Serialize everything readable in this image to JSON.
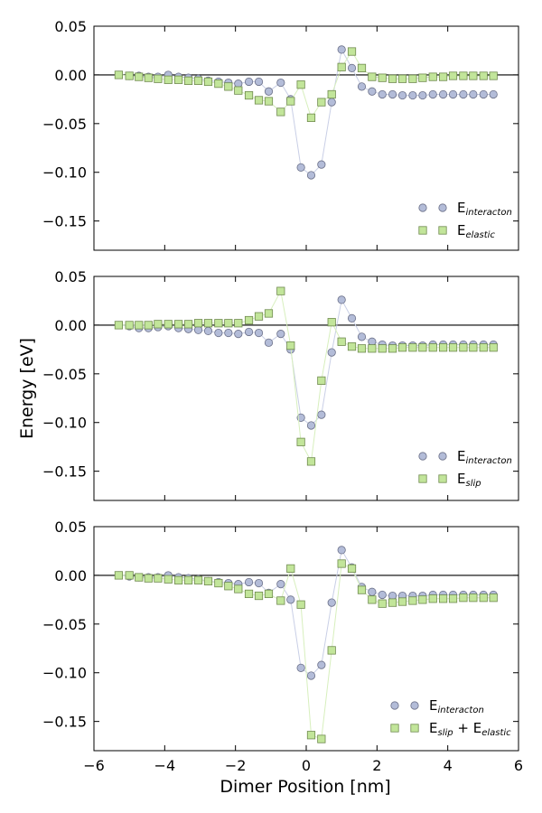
{
  "figure": {
    "ylabel": "Energy [eV]",
    "xlabel": "Dimer Position [nm]"
  },
  "colors": {
    "interaction_fill": "#b3bcd8",
    "interaction_edge": "#6b7088",
    "interaction_line": "#c9cfe6",
    "elastic_fill": "#c2e59a",
    "elastic_edge": "#6f8a4e",
    "elastic_line": "#d7efbd"
  },
  "chart_data": [
    {
      "type": "scatter",
      "title": "",
      "xlabel": "",
      "ylabel": "Energy [eV]",
      "xlim": [
        -6,
        6
      ],
      "ylim": [
        -0.18,
        0.05
      ],
      "xticks": [
        "−6",
        "−4",
        "−2",
        "0",
        "2",
        "4",
        "6"
      ],
      "yticks": [
        "0.05",
        "0.00",
        "−0.05",
        "−0.10",
        "−0.15"
      ],
      "ytick_values": [
        0.05,
        0.0,
        -0.05,
        -0.1,
        -0.15
      ],
      "legend_position": "bottom-right",
      "x": [
        -5.3,
        -5.0,
        -4.73,
        -4.46,
        -4.19,
        -3.9,
        -3.61,
        -3.33,
        -3.05,
        -2.77,
        -2.48,
        -2.2,
        -1.92,
        -1.62,
        -1.34,
        -1.06,
        -0.72,
        -0.44,
        -0.15,
        0.14,
        0.43,
        0.72,
        1.0,
        1.29,
        1.57,
        1.86,
        2.15,
        2.44,
        2.72,
        3.01,
        3.29,
        3.58,
        3.87,
        4.15,
        4.44,
        4.72,
        5.01,
        5.29
      ],
      "series": [
        {
          "name": "interaction",
          "label_main": "E",
          "label_sub": "interacton",
          "marker": "circle",
          "values": [
            0,
            -0.001,
            -0.001,
            -0.002,
            -0.002,
            0,
            -0.002,
            -0.003,
            -0.004,
            -0.006,
            -0.007,
            -0.008,
            -0.009,
            -0.007,
            -0.007,
            -0.017,
            -0.008,
            -0.025,
            -0.095,
            -0.103,
            -0.092,
            -0.028,
            0.026,
            0.007,
            -0.012,
            -0.017,
            -0.02,
            -0.02,
            -0.021,
            -0.021,
            -0.021,
            -0.02,
            -0.02,
            -0.02,
            -0.02,
            -0.02,
            -0.02,
            -0.02
          ]
        },
        {
          "name": "elastic",
          "label_main": "E",
          "label_sub": "elastic",
          "marker": "square",
          "values": [
            0,
            -0.001,
            -0.002,
            -0.003,
            -0.004,
            -0.005,
            -0.005,
            -0.006,
            -0.006,
            -0.007,
            -0.009,
            -0.012,
            -0.016,
            -0.021,
            -0.026,
            -0.027,
            -0.038,
            -0.027,
            -0.01,
            -0.044,
            -0.028,
            -0.02,
            0.008,
            0.024,
            0.007,
            -0.002,
            -0.003,
            -0.004,
            -0.004,
            -0.004,
            -0.003,
            -0.002,
            -0.002,
            -0.001,
            -0.001,
            -0.001,
            -0.001,
            -0.001
          ]
        }
      ]
    },
    {
      "type": "scatter",
      "title": "",
      "xlabel": "",
      "ylabel": "Energy [eV]",
      "xlim": [
        -6,
        6
      ],
      "ylim": [
        -0.18,
        0.05
      ],
      "xticks": [
        "−6",
        "−4",
        "−2",
        "0",
        "2",
        "4",
        "6"
      ],
      "yticks": [
        "0.05",
        "0.00",
        "−0.05",
        "−0.10",
        "−0.15"
      ],
      "ytick_values": [
        0.05,
        0.0,
        -0.05,
        -0.1,
        -0.15
      ],
      "legend_position": "bottom-right",
      "x": [
        -5.3,
        -5.0,
        -4.73,
        -4.46,
        -4.19,
        -3.9,
        -3.61,
        -3.33,
        -3.05,
        -2.77,
        -2.48,
        -2.2,
        -1.92,
        -1.62,
        -1.34,
        -1.06,
        -0.72,
        -0.44,
        -0.15,
        0.14,
        0.43,
        0.72,
        1.0,
        1.29,
        1.57,
        1.86,
        2.15,
        2.44,
        2.72,
        3.01,
        3.29,
        3.58,
        3.87,
        4.15,
        4.44,
        4.72,
        5.01,
        5.29
      ],
      "series": [
        {
          "name": "interaction",
          "label_main": "E",
          "label_sub": "interacton",
          "marker": "circle",
          "values": [
            0,
            -0.001,
            -0.003,
            -0.003,
            -0.002,
            -0.001,
            -0.003,
            -0.004,
            -0.005,
            -0.006,
            -0.008,
            -0.008,
            -0.009,
            -0.007,
            -0.008,
            -0.018,
            -0.009,
            -0.025,
            -0.095,
            -0.103,
            -0.092,
            -0.028,
            0.026,
            0.007,
            -0.012,
            -0.017,
            -0.02,
            -0.021,
            -0.021,
            -0.021,
            -0.021,
            -0.02,
            -0.02,
            -0.02,
            -0.02,
            -0.02,
            -0.02,
            -0.02
          ]
        },
        {
          "name": "slip",
          "label_main": "E",
          "label_sub": "slip",
          "marker": "square",
          "values": [
            0,
            0,
            0,
            0,
            0.001,
            0.001,
            0.001,
            0.001,
            0.002,
            0.002,
            0.002,
            0.002,
            0.002,
            0.005,
            0.009,
            0.012,
            0.035,
            -0.021,
            -0.12,
            -0.14,
            -0.057,
            0.003,
            -0.017,
            -0.022,
            -0.024,
            -0.024,
            -0.024,
            -0.024,
            -0.023,
            -0.023,
            -0.023,
            -0.023,
            -0.023,
            -0.023,
            -0.023,
            -0.023,
            -0.023,
            -0.023
          ]
        }
      ]
    },
    {
      "type": "scatter",
      "title": "",
      "xlabel": "Dimer Position [nm]",
      "ylabel": "Energy [eV]",
      "xlim": [
        -6,
        6
      ],
      "ylim": [
        -0.18,
        0.05
      ],
      "xticks": [
        "−6",
        "−4",
        "−2",
        "0",
        "2",
        "4",
        "6"
      ],
      "yticks": [
        "0.05",
        "0.00",
        "−0.05",
        "−0.10",
        "−0.15"
      ],
      "ytick_values": [
        0.05,
        0.0,
        -0.05,
        -0.1,
        -0.15
      ],
      "legend_position": "bottom-right",
      "x": [
        -5.3,
        -5.0,
        -4.73,
        -4.46,
        -4.19,
        -3.9,
        -3.61,
        -3.33,
        -3.05,
        -2.77,
        -2.48,
        -2.2,
        -1.92,
        -1.62,
        -1.34,
        -1.06,
        -0.72,
        -0.44,
        -0.15,
        0.14,
        0.43,
        0.72,
        1.0,
        1.29,
        1.57,
        1.86,
        2.15,
        2.44,
        2.72,
        3.01,
        3.29,
        3.58,
        3.87,
        4.15,
        4.44,
        4.72,
        5.01,
        5.29
      ],
      "series": [
        {
          "name": "interaction",
          "label_main": "E",
          "label_sub": "interacton",
          "marker": "circle",
          "values": [
            0,
            -0.001,
            -0.002,
            -0.002,
            -0.002,
            0,
            -0.002,
            -0.003,
            -0.004,
            -0.006,
            -0.007,
            -0.008,
            -0.009,
            -0.007,
            -0.008,
            -0.018,
            -0.009,
            -0.025,
            -0.095,
            -0.103,
            -0.092,
            -0.028,
            0.026,
            0.008,
            -0.012,
            -0.017,
            -0.02,
            -0.021,
            -0.021,
            -0.021,
            -0.021,
            -0.02,
            -0.02,
            -0.02,
            -0.02,
            -0.02,
            -0.02,
            -0.02
          ]
        },
        {
          "name": "slip_plus_elastic",
          "label_main": "E",
          "label_sub": "slip",
          "label_plus": " + E",
          "label_sub2": "elastic",
          "marker": "square",
          "values": [
            0,
            0,
            -0.002,
            -0.003,
            -0.003,
            -0.004,
            -0.005,
            -0.005,
            -0.005,
            -0.006,
            -0.008,
            -0.011,
            -0.014,
            -0.019,
            -0.021,
            -0.019,
            -0.026,
            0.007,
            -0.03,
            -0.164,
            -0.168,
            -0.077,
            0.012,
            0.007,
            -0.015,
            -0.025,
            -0.029,
            -0.028,
            -0.027,
            -0.026,
            -0.025,
            -0.024,
            -0.024,
            -0.024,
            -0.023,
            -0.023,
            -0.023,
            -0.023
          ]
        }
      ]
    }
  ]
}
